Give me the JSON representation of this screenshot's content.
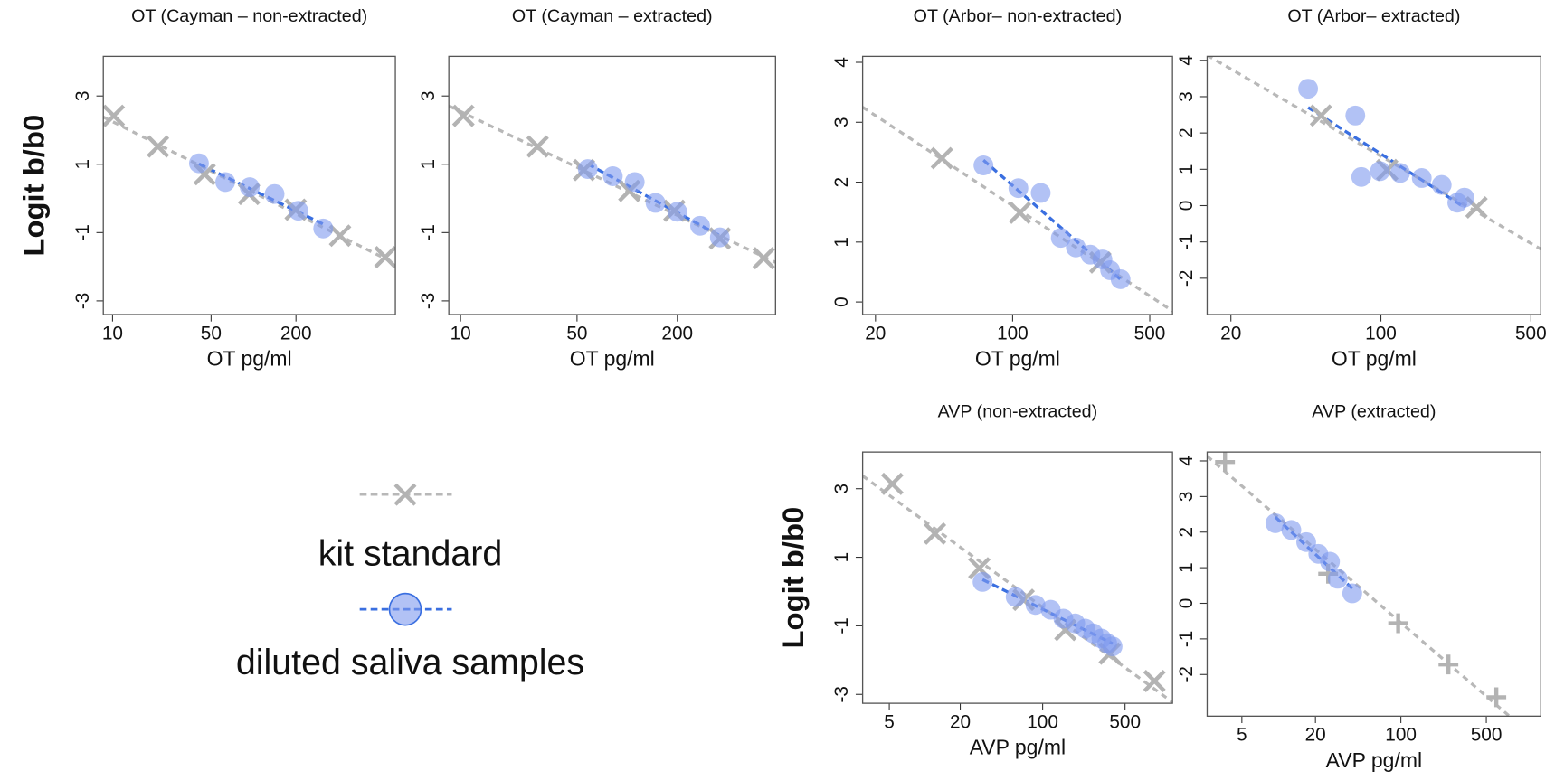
{
  "chart_data": [
    {
      "type": "scatter",
      "title": "OT (Cayman – non-extracted)",
      "xlabel": "OT pg/ml",
      "ylabel": "Logit b/b0",
      "xscale": "log",
      "xlim": [
        8.6,
        1014
      ],
      "ylim": [
        -3.4,
        4.16
      ],
      "xticks": [
        10,
        50,
        200
      ],
      "yticks": [
        -3,
        -1,
        1,
        3
      ],
      "series": [
        {
          "marker": "x",
          "color": "#b3b3b3",
          "x": [
            10.2,
            21,
            45,
            93,
            199,
            411,
            861
          ],
          "values": [
            2.42,
            1.52,
            0.71,
            0.13,
            -0.33,
            -1.09,
            -1.72
          ]
        },
        {
          "marker": "circle",
          "color": "#7f99ee",
          "x": [
            41,
            63,
            94,
            141,
            208,
            312
          ],
          "values": [
            1.03,
            0.48,
            0.33,
            0.13,
            -0.36,
            -0.88
          ]
        }
      ]
    },
    {
      "type": "scatter",
      "title": "OT (Cayman – extracted)",
      "xlabel": "OT pg/ml",
      "xscale": "log",
      "xlim": [
        8.5,
        777
      ],
      "ylim": [
        -3.4,
        4.16
      ],
      "xticks": [
        10,
        50,
        200
      ],
      "yticks": [
        -3,
        -1,
        1,
        3
      ],
      "series": [
        {
          "marker": "x",
          "color": "#b3b3b3",
          "x": [
            10.4,
            29,
            55,
            103,
            192,
            360,
            660
          ],
          "values": [
            2.42,
            1.52,
            0.83,
            0.22,
            -0.36,
            -1.17,
            -1.75
          ]
        },
        {
          "marker": "circle",
          "color": "#7f99ee",
          "x": [
            58,
            82,
            111,
            148,
            200,
            274,
            360
          ],
          "values": [
            0.86,
            0.65,
            0.48,
            -0.13,
            -0.39,
            -0.8,
            -1.14
          ]
        }
      ]
    },
    {
      "type": "scatter",
      "title": "OT (Arbor– non-extracted)",
      "xlabel": "OT pg/ml",
      "xscale": "log",
      "xlim": [
        17.2,
        653
      ],
      "ylim": [
        -0.21,
        4.1
      ],
      "xticks": [
        20,
        100,
        500
      ],
      "yticks": [
        0,
        1,
        2,
        3,
        4
      ],
      "series": [
        {
          "marker": "x",
          "color": "#b3b3b3",
          "x": [
            43.6,
            109,
            280
          ],
          "values": [
            2.4,
            1.49,
            0.66
          ]
        },
        {
          "marker": "circle",
          "color": "#7f99ee",
          "x": [
            71,
            107,
            139,
            176,
            210,
            249,
            287,
            314,
            355
          ],
          "values": [
            2.28,
            1.9,
            1.82,
            1.07,
            0.91,
            0.79,
            0.71,
            0.53,
            0.38
          ]
        }
      ]
    },
    {
      "type": "scatter",
      "title": "OT (Arbor– extracted)",
      "xlabel": "OT pg/ml",
      "xscale": "log",
      "xlim": [
        15.5,
        556
      ],
      "ylim": [
        -3.0,
        4.11
      ],
      "xticks": [
        20,
        100,
        500
      ],
      "yticks": [
        -2,
        -1,
        0,
        1,
        2,
        3,
        4
      ],
      "series": [
        {
          "marker": "x",
          "color": "#b3b3b3",
          "x": [
            52.6,
            107,
            279
          ],
          "values": [
            2.48,
            0.98,
            -0.05
          ]
        },
        {
          "marker": "circle",
          "color": "#7f99ee",
          "x": [
            45.8,
            76,
            81,
            99,
            123,
            155,
            192,
            227,
            245
          ],
          "values": [
            3.22,
            2.48,
            0.79,
            0.95,
            0.9,
            0.76,
            0.57,
            0.08,
            0.22
          ]
        }
      ]
    },
    {
      "type": "scatter",
      "title": "AVP (non-extracted)",
      "xlabel": "AVP pg/ml",
      "ylabel": "Logit b/b0",
      "xscale": "log",
      "xlim": [
        2.97,
        1264
      ],
      "ylim": [
        -3.26,
        4.07
      ],
      "xticks": [
        5,
        20,
        100,
        500
      ],
      "yticks": [
        -3,
        -1,
        1,
        3
      ],
      "series": [
        {
          "marker": "x",
          "color": "#b3b3b3",
          "x": [
            5.3,
            12.2,
            29,
            69,
            156,
            371,
            888
          ],
          "values": [
            3.14,
            1.69,
            0.68,
            -0.24,
            -1.12,
            -1.81,
            -2.61
          ]
        },
        {
          "marker": "circle",
          "color": "#7f99ee",
          "x": [
            30.9,
            59,
            87,
            117,
            150,
            189,
            230,
            269,
            315,
            353,
            392
          ],
          "values": [
            0.28,
            -0.16,
            -0.39,
            -0.53,
            -0.79,
            -0.93,
            -1.08,
            -1.22,
            -1.37,
            -1.51,
            -1.6
          ]
        }
      ]
    },
    {
      "type": "scatter",
      "title": "AVP (extracted)",
      "xlabel": "AVP pg/ml",
      "xscale": "log",
      "xlim": [
        2.6,
        1395
      ],
      "ylim": [
        -3.17,
        4.25
      ],
      "xticks": [
        5,
        20,
        100,
        500
      ],
      "yticks": [
        -2,
        -1,
        0,
        1,
        2,
        3,
        4
      ],
      "series": [
        {
          "marker": "plus",
          "color": "#b3b3b3",
          "x": [
            3.64,
            25.4,
            95,
            245,
            604
          ],
          "values": [
            3.97,
            0.83,
            -0.56,
            -1.72,
            -2.64
          ]
        },
        {
          "marker": "circle",
          "color": "#7f99ee",
          "x": [
            9.4,
            12.7,
            16.8,
            21.1,
            26.3,
            30.4,
            40
          ],
          "values": [
            2.25,
            2.06,
            1.72,
            1.39,
            1.17,
            0.69,
            0.28
          ]
        }
      ]
    }
  ],
  "legend": {
    "items": [
      {
        "label": "kit standard",
        "marker": "x",
        "color": "#b3b3b3"
      },
      {
        "label": "diluted saliva samples",
        "marker": "circle",
        "color": "#7f99ee"
      }
    ]
  }
}
